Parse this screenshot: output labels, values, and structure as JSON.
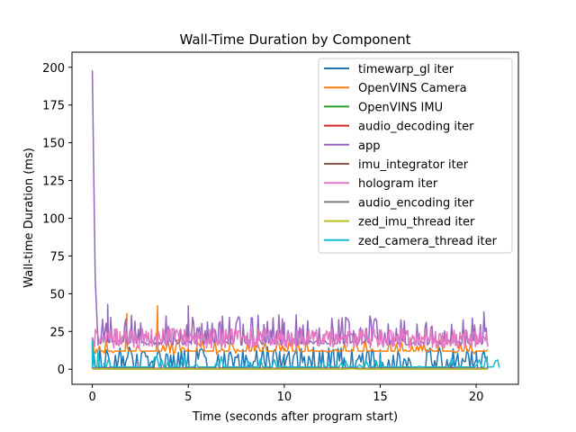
{
  "chart_data": {
    "type": "line",
    "title": "Wall-Time Duration by Component",
    "xlabel": "Time (seconds after program start)",
    "ylabel": "Wall-time Duration (ms)",
    "xlim": [
      -1.06,
      22.2
    ],
    "ylim": [
      -10,
      210
    ],
    "xticks": [
      0,
      5,
      10,
      15,
      20
    ],
    "yticks": [
      0,
      25,
      50,
      75,
      100,
      125,
      150,
      175,
      200
    ],
    "grid": false,
    "legend_position": "top-right",
    "series": [
      {
        "name": "timewarp_gl iter",
        "color": "#1f77b4",
        "pattern": {
          "t0": 0,
          "t1": 20.6,
          "base": 0.5,
          "spikeMin": 4,
          "spikeMax": 15,
          "spikeProb": 0.55,
          "dt": 0.08
        },
        "points": [
          [
            0,
            0.5
          ],
          [
            1.5,
            8
          ],
          [
            5,
            12
          ],
          [
            10,
            10
          ],
          [
            15,
            11
          ],
          [
            20,
            12
          ],
          [
            20.6,
            0.5
          ]
        ]
      },
      {
        "name": "OpenVINS Camera",
        "color": "#ff7f0e",
        "pattern": {
          "t0": 0,
          "t1": 20.6,
          "base": 12,
          "spikeMin": 10,
          "spikeMax": 20,
          "spikeProb": 0.35,
          "dt": 0.09
        },
        "points": [
          [
            0,
            20
          ],
          [
            0.2,
            13
          ],
          [
            1.8,
            37
          ],
          [
            3.4,
            42
          ],
          [
            5,
            14
          ],
          [
            10,
            14
          ],
          [
            15,
            13
          ],
          [
            20.6,
            13
          ]
        ]
      },
      {
        "name": "OpenVINS IMU",
        "color": "#2ca02c",
        "pattern": {
          "t0": 0,
          "t1": 20.6,
          "base": 0.3,
          "spikeMin": 0.3,
          "spikeMax": 0.8,
          "spikeProb": 0.1,
          "dt": 0.3
        },
        "points": [
          [
            0,
            0.3
          ],
          [
            20.6,
            0.3
          ]
        ]
      },
      {
        "name": "audio_decoding iter",
        "color": "#d62728",
        "pattern": {
          "t0": 0,
          "t1": 20.6,
          "base": 0.6,
          "spikeMin": 0.8,
          "spikeMax": 1.6,
          "spikeProb": 0.15,
          "dt": 0.3
        },
        "points": [
          [
            0,
            0.6
          ],
          [
            20.6,
            0.6
          ]
        ]
      },
      {
        "name": "app",
        "color": "#9467bd",
        "pattern": {
          "t0": 0.3,
          "t1": 20.6,
          "base": 16,
          "spikeMin": 24,
          "spikeMax": 36,
          "spikeProb": 0.25,
          "dt": 0.06
        },
        "points": [
          [
            0,
            198
          ],
          [
            0.15,
            60
          ],
          [
            0.3,
            20
          ],
          [
            0.8,
            43
          ],
          [
            5,
            42
          ],
          [
            10,
            31
          ],
          [
            20.4,
            38
          ],
          [
            20.6,
            15
          ]
        ]
      },
      {
        "name": "imu_integrator iter",
        "color": "#8c564b",
        "pattern": {
          "t0": 0,
          "t1": 20.6,
          "base": 0.2,
          "spikeMin": 0.2,
          "spikeMax": 0.5,
          "spikeProb": 0.1,
          "dt": 0.3
        },
        "points": [
          [
            0,
            0.2
          ],
          [
            20.6,
            0.2
          ]
        ]
      },
      {
        "name": "hologram iter",
        "color": "#e377c2",
        "pattern": {
          "t0": 0,
          "t1": 20.6,
          "base": 19,
          "spikeMin": 14,
          "spikeMax": 27,
          "spikeProb": 0.9,
          "dt": 0.04
        },
        "points": [
          [
            0,
            21
          ],
          [
            5,
            20
          ],
          [
            10,
            19
          ],
          [
            15,
            19
          ],
          [
            20,
            20
          ],
          [
            20.6,
            15
          ]
        ]
      },
      {
        "name": "audio_encoding iter",
        "color": "#7f7f7f",
        "pattern": {
          "t0": 0,
          "t1": 20.6,
          "base": 0.4,
          "spikeMin": 0.4,
          "spikeMax": 0.9,
          "spikeProb": 0.1,
          "dt": 0.3
        },
        "points": [
          [
            0,
            0.4
          ],
          [
            20.6,
            0.4
          ]
        ]
      },
      {
        "name": "zed_imu_thread iter",
        "color": "#bcbd22",
        "pattern": {
          "t0": 0,
          "t1": 20.6,
          "base": 0.1,
          "spikeMin": 0.1,
          "spikeMax": 0.4,
          "spikeProb": 0.1,
          "dt": 0.3
        },
        "points": [
          [
            0,
            0.1
          ],
          [
            20.6,
            0.1
          ]
        ]
      },
      {
        "name": "zed_camera_thread iter",
        "color": "#17becf",
        "pattern": {
          "t0": 0,
          "t1": 21.2,
          "base": 1.5,
          "spikeMin": 2,
          "spikeMax": 9,
          "spikeProb": 0.12,
          "dt": 0.12
        },
        "points": [
          [
            0,
            19
          ],
          [
            0.3,
            12
          ],
          [
            0.6,
            4
          ],
          [
            1.2,
            2
          ],
          [
            10,
            2
          ],
          [
            15,
            7
          ],
          [
            20.6,
            2
          ],
          [
            21.2,
            1
          ]
        ]
      }
    ]
  }
}
